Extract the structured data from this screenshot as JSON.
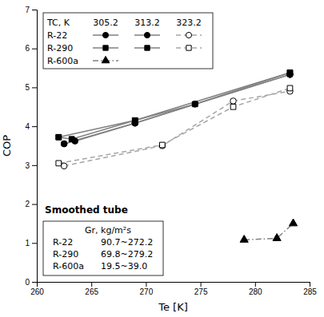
{
  "chart_data": {
    "type": "line",
    "x_label": "Te  [K]",
    "y_label": "COP",
    "xlim": [
      260,
      285
    ],
    "ylim": [
      0,
      7
    ],
    "xticks": [
      260,
      265,
      270,
      275,
      280,
      285
    ],
    "yticks": [
      0,
      1,
      2,
      3,
      4,
      5,
      6,
      7
    ],
    "grid": false,
    "legend_title": "TC, K",
    "series": [
      {
        "name": "R-22",
        "tc": "305.2",
        "x": [
          262.5,
          263.5,
          269.0,
          283.2
        ],
        "values": [
          3.55,
          3.62,
          4.08,
          5.33
        ],
        "marker": "filled-circle",
        "line_style": "solid",
        "color": "#808080"
      },
      {
        "name": "R-22",
        "tc": "313.2",
        "x": [
          262.5,
          269.0,
          274.5,
          283.2
        ],
        "values": [
          3.55,
          4.08,
          4.57,
          5.33
        ],
        "marker": "filled-circle",
        "line_style": "solid",
        "color": "#808080"
      },
      {
        "name": "R-22",
        "tc": "323.2",
        "x": [
          262.5,
          271.5,
          278.0,
          283.2
        ],
        "values": [
          2.98,
          3.5,
          4.65,
          4.9
        ],
        "marker": "open-circle",
        "line_style": "dashed",
        "color": "#a6a6a6"
      },
      {
        "name": "R-290",
        "tc": "305.2",
        "x": [
          262.0,
          263.2,
          269.0,
          283.2
        ],
        "values": [
          3.72,
          3.67,
          4.15,
          5.38
        ],
        "marker": "filled-square",
        "line_style": "solid",
        "color": "#808080"
      },
      {
        "name": "R-290",
        "tc": "313.2",
        "x": [
          262.0,
          269.0,
          274.5,
          283.2
        ],
        "values": [
          3.72,
          4.15,
          4.57,
          5.38
        ],
        "marker": "filled-square",
        "line_style": "solid",
        "color": "#808080"
      },
      {
        "name": "R-290",
        "tc": "323.2",
        "x": [
          262.0,
          271.5,
          278.0,
          283.2
        ],
        "values": [
          3.05,
          3.52,
          4.5,
          4.98
        ],
        "marker": "open-square",
        "line_style": "dashed",
        "color": "#a6a6a6"
      },
      {
        "name": "R-600a",
        "tc": "305.2",
        "x": [
          279.0,
          282.0,
          283.5
        ],
        "values": [
          1.08,
          1.12,
          1.5
        ],
        "marker": "filled-triangle",
        "line_style": "dashdot",
        "color": "#808080"
      }
    ],
    "annotations": [
      {
        "text": "Smoothed tube"
      }
    ],
    "info_box": {
      "title": "Gr, kg/m²s",
      "rows": [
        {
          "label": "R-22",
          "value": "90.7~272.2"
        },
        {
          "label": "R-290",
          "value": "69.8~279.2"
        },
        {
          "label": "R-600a",
          "value": "19.5~39.0"
        }
      ]
    }
  }
}
